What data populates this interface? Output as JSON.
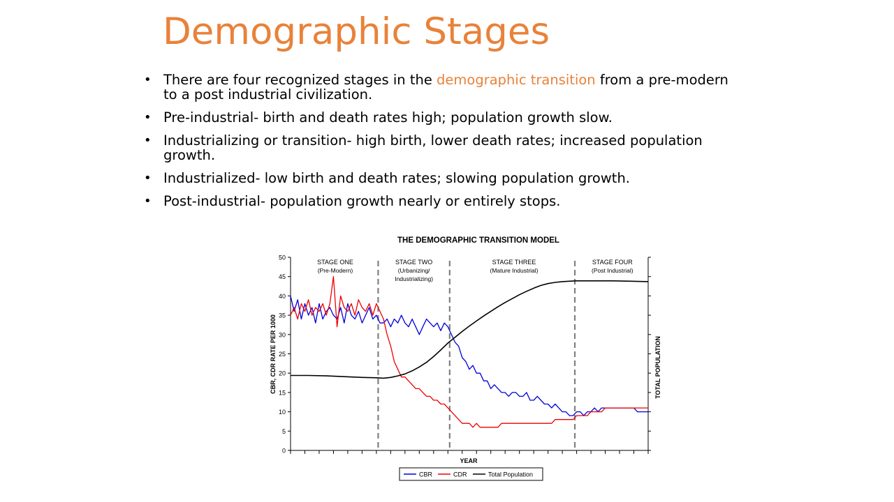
{
  "slide": {
    "title": "Demographic Stages",
    "bullets": [
      {
        "pre": "There are four recognized stages in the ",
        "highlight": "demographic transition",
        "post": " from a pre-modern to a post industrial civilization."
      },
      {
        "pre": "Pre-industrial- birth and death rates high; population growth slow.",
        "highlight": "",
        "post": ""
      },
      {
        "pre": "Industrializing or transition- high birth, lower death rates; increased population growth.",
        "highlight": "",
        "post": ""
      },
      {
        "pre": "Industrialized- low birth and death rates; slowing population growth.",
        "highlight": "",
        "post": ""
      },
      {
        "pre": "Post-industrial- population growth nearly or entirely stops.",
        "highlight": "",
        "post": ""
      }
    ]
  },
  "colors": {
    "title": "#e8823a",
    "highlight": "#e8823a",
    "cbr": "#0000dd",
    "cdr": "#ee0000",
    "population": "#000000",
    "stage_divider": "#808080"
  },
  "chart_data": {
    "type": "line",
    "title": "THE DEMOGRAPHIC TRANSITION MODEL",
    "xlabel": "YEAR",
    "ylabel": "CBR, CDR RATE PER 1000",
    "y2label": "TOTAL POPULATION",
    "xlim": [
      0,
      100
    ],
    "ylim": [
      0,
      50
    ],
    "yticks": [
      0,
      5,
      10,
      15,
      20,
      25,
      30,
      35,
      40,
      45,
      50
    ],
    "x_minor_ticks": 25,
    "y2_minor_ticks": 10,
    "stage_boundaries": [
      24.5,
      44.5,
      79.5
    ],
    "stages": [
      {
        "name": "STAGE ONE",
        "sub": "(Pre-Modern)",
        "x": 12.5
      },
      {
        "name": "STAGE TWO",
        "sub": [
          "(Urbanizing/",
          "Industrializing)"
        ],
        "x": 34.5
      },
      {
        "name": "STAGE THREE",
        "sub": "(Mature Industrial)",
        "x": 62.5
      },
      {
        "name": "STAGE FOUR",
        "sub": "(Post Industrial)",
        "x": 90
      }
    ],
    "legend": {
      "position": "bottom-center",
      "entries": [
        "CBR",
        "CDR",
        "Total Population"
      ]
    },
    "series": [
      {
        "name": "CBR",
        "x": [
          0,
          1,
          2,
          3,
          4,
          5,
          6,
          7,
          8,
          9,
          10,
          11,
          12,
          13,
          14,
          15,
          16,
          17,
          18,
          19,
          20,
          21,
          22,
          23,
          24,
          25,
          26,
          27,
          28,
          29,
          30,
          31,
          32,
          33,
          34,
          35,
          36,
          37,
          38,
          39,
          40,
          41,
          42,
          43,
          44,
          45,
          46,
          47,
          48,
          49,
          50,
          51,
          52,
          53,
          54,
          55,
          56,
          57,
          58,
          59,
          60,
          61,
          62,
          63,
          64,
          65,
          66,
          67,
          68,
          69,
          70,
          71,
          72,
          73,
          74,
          75,
          76,
          77,
          78,
          79,
          80,
          81,
          82,
          83,
          84,
          85,
          86,
          87,
          88,
          89,
          90,
          91,
          92,
          93,
          94,
          95,
          96,
          97,
          98,
          99,
          100
        ],
        "values": [
          40,
          36,
          39,
          34,
          38,
          35,
          37,
          33,
          38,
          34,
          36,
          37,
          35,
          34,
          37,
          33,
          38,
          35,
          34,
          36,
          33,
          35,
          37,
          34,
          35,
          33,
          33,
          34,
          32,
          34,
          33,
          35,
          33,
          32,
          34,
          32,
          30,
          32,
          34,
          33,
          32,
          33,
          31,
          33,
          32,
          30,
          28,
          27,
          24,
          23,
          21,
          22,
          20,
          20,
          18,
          18,
          16,
          17,
          16,
          15,
          15,
          14,
          15,
          15,
          14,
          14,
          15,
          13,
          13,
          14,
          13,
          12,
          12,
          11,
          12,
          11,
          10,
          10,
          9,
          9,
          10,
          10,
          9,
          10,
          10,
          11,
          10,
          11,
          11,
          11,
          11,
          11,
          11,
          11,
          11,
          11,
          11,
          10,
          10,
          10,
          10
        ]
      },
      {
        "name": "CDR",
        "x": [
          0,
          1,
          2,
          3,
          4,
          5,
          6,
          7,
          8,
          9,
          10,
          11,
          12,
          13,
          14,
          15,
          16,
          17,
          18,
          19,
          20,
          21,
          22,
          23,
          24,
          25,
          26,
          27,
          28,
          29,
          30,
          31,
          32,
          33,
          34,
          35,
          36,
          37,
          38,
          39,
          40,
          41,
          42,
          43,
          44,
          45,
          46,
          47,
          48,
          49,
          50,
          51,
          52,
          53,
          54,
          55,
          56,
          57,
          58,
          59,
          60,
          61,
          62,
          63,
          64,
          65,
          66,
          67,
          68,
          69,
          70,
          71,
          72,
          73,
          74,
          75,
          76,
          77,
          78,
          79,
          80,
          81,
          82,
          83,
          84,
          85,
          86,
          87,
          88,
          89,
          90,
          91,
          92,
          93,
          94,
          95,
          96,
          97,
          98,
          99,
          100
        ],
        "values": [
          35,
          37,
          34,
          38,
          36,
          39,
          35,
          37,
          36,
          38,
          35,
          38,
          45,
          32,
          40,
          37,
          36,
          38,
          35,
          39,
          37,
          36,
          38,
          35,
          38,
          36,
          34,
          30,
          27,
          23,
          21,
          19,
          19,
          18,
          17,
          16,
          16,
          15,
          14,
          14,
          13,
          13,
          12,
          12,
          11,
          10,
          9,
          8,
          7,
          7,
          7,
          6,
          7,
          6,
          6,
          6,
          6,
          6,
          6,
          7,
          7,
          7,
          7,
          7,
          7,
          7,
          7,
          7,
          7,
          7,
          7,
          7,
          7,
          7,
          8,
          8,
          8,
          8,
          8,
          8,
          9,
          9,
          9,
          9,
          10,
          10,
          10,
          10,
          11,
          11,
          11,
          11,
          11,
          11,
          11,
          11,
          11,
          11,
          11,
          11,
          11
        ]
      },
      {
        "name": "Total Population",
        "x": [
          0,
          5,
          10,
          15,
          20,
          24,
          26,
          28,
          30,
          32,
          34,
          36,
          38,
          40,
          42,
          44,
          46,
          48,
          50,
          52,
          54,
          56,
          58,
          60,
          62,
          64,
          66,
          68,
          70,
          72,
          74,
          76,
          78,
          80,
          85,
          90,
          95,
          100
        ],
        "values": [
          19.4,
          19.4,
          19.3,
          19.1,
          18.9,
          18.8,
          18.7,
          18.9,
          19.3,
          19.8,
          20.6,
          21.6,
          22.8,
          24.3,
          26.0,
          27.8,
          29.3,
          30.8,
          32.2,
          33.5,
          34.8,
          36.0,
          37.2,
          38.3,
          39.3,
          40.3,
          41.2,
          42.0,
          42.7,
          43.2,
          43.5,
          43.7,
          43.8,
          43.9,
          43.9,
          43.9,
          43.8,
          43.7
        ]
      }
    ]
  }
}
